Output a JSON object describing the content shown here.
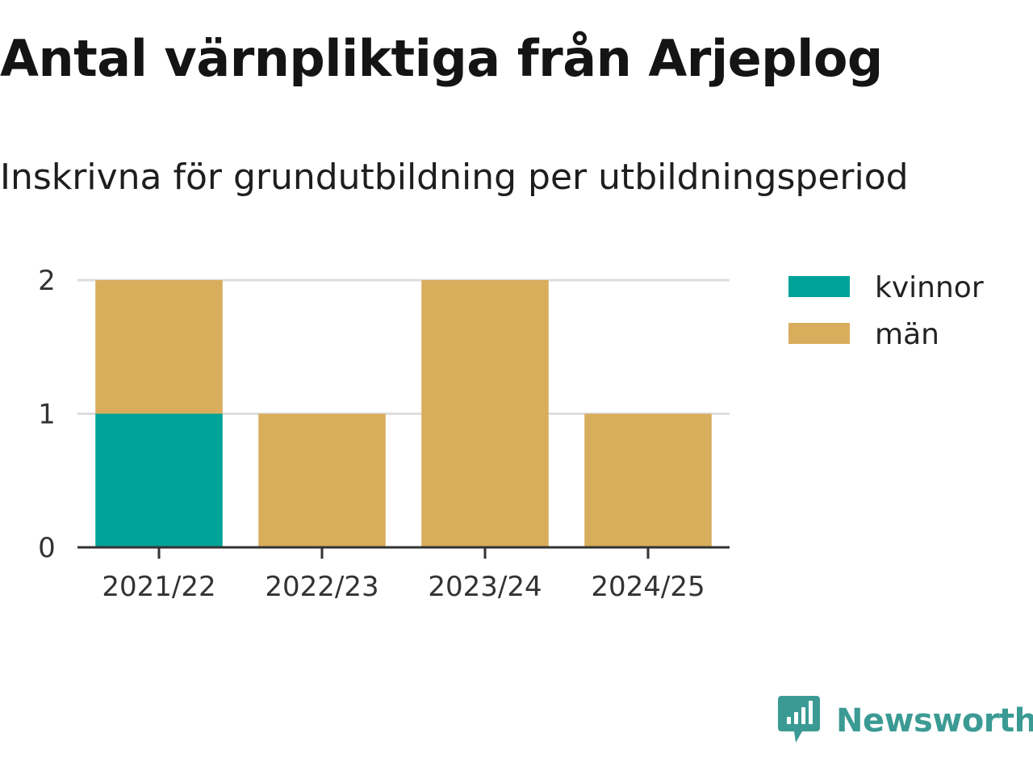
{
  "title": "Antal värnpliktiga från Arjeplog",
  "subtitle": "Inskrivna för grundutbildning per utbildningsperiod",
  "brand": {
    "name": "Newsworthy",
    "color": "#3b9b94",
    "icon": "newsworthy-logo-icon"
  },
  "chart_data": {
    "type": "bar",
    "stacked": true,
    "title": "Antal värnpliktiga från Arjeplog",
    "subtitle": "Inskrivna för grundutbildning per utbildningsperiod",
    "categories": [
      "2021/22",
      "2022/23",
      "2023/24",
      "2024/25"
    ],
    "series": [
      {
        "name": "kvinnor",
        "color": "#00a398",
        "values": [
          1,
          0,
          0,
          0
        ]
      },
      {
        "name": "män",
        "color": "#d8ad5b",
        "values": [
          1,
          1,
          2,
          1
        ]
      }
    ],
    "ylim": [
      0,
      2
    ],
    "yticks": [
      0,
      1,
      2
    ],
    "grid": true,
    "legend": "top-right"
  }
}
